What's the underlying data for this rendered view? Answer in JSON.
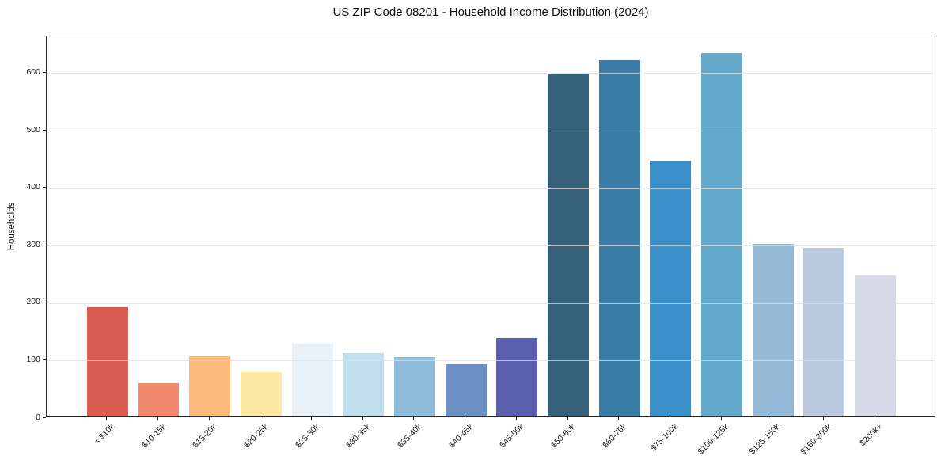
{
  "chart_data": {
    "type": "bar",
    "title": "US ZIP Code 08201 - Household Income Distribution (2024)",
    "ylabel": "Households",
    "xlabel": "",
    "categories": [
      "< $10k",
      "$10-15k",
      "$15-20k",
      "$20-25k",
      "$25-30k",
      "$30-35k",
      "$35-40k",
      "$40-45k",
      "$45-50k",
      "$50-60k",
      "$60-75k",
      "$75-100k",
      "$100-125k",
      "$125-150k",
      "$150-200k",
      "$200k+"
    ],
    "values": [
      190,
      58,
      105,
      77,
      127,
      110,
      103,
      91,
      136,
      597,
      620,
      445,
      633,
      300,
      293,
      245
    ],
    "bar_colors": [
      "#d85c50",
      "#f2886b",
      "#fbbb7c",
      "#fde8a4",
      "#e9f2f9",
      "#c1dfec",
      "#8fbddb",
      "#6c90c4",
      "#5b5fae",
      "#36617a",
      "#3a7ea7",
      "#3b8fc8",
      "#62a9cc",
      "#94bad7",
      "#bac9de",
      "#d8dae7"
    ],
    "yticks": [
      0,
      100,
      200,
      300,
      400,
      500,
      600
    ],
    "ylim": [
      0,
      664
    ],
    "xtick_rotation_deg": 45,
    "grid": "horizontal",
    "gridline_color": "rgba(223,223,223,0.75)",
    "axis_color": "#262626",
    "background_color": "#ffffff",
    "legend": "none"
  }
}
